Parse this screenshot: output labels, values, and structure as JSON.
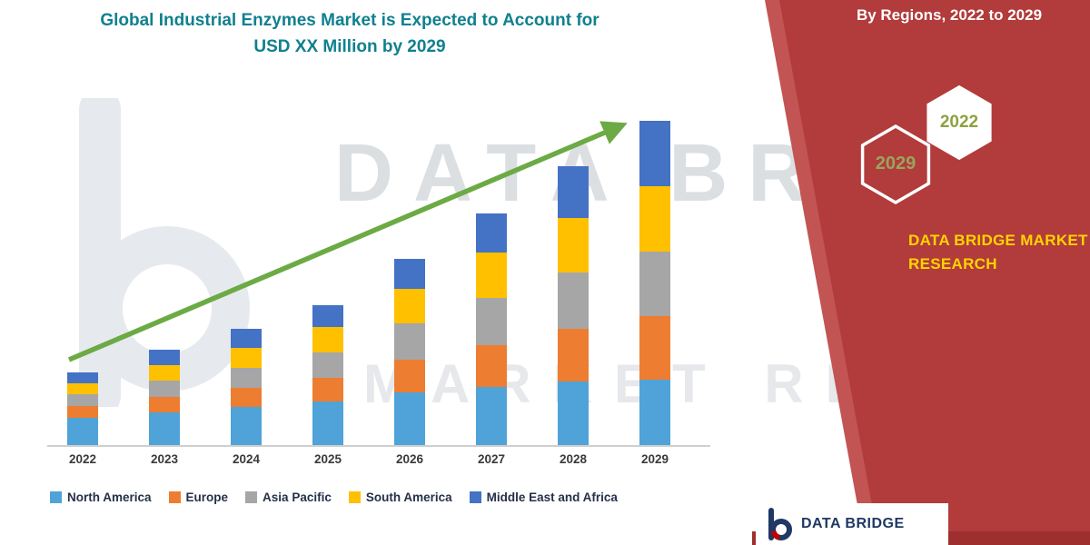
{
  "title": {
    "line1": "Global Industrial Enzymes Market is Expected to Account for",
    "line2": "USD XX Million by 2029"
  },
  "side_panel": {
    "header": "By Regions, 2022 to 2029",
    "hexagons": {
      "back_label": "2029",
      "front_label": "2022"
    },
    "brand": {
      "line1": "DATA BRIDGE MARKET",
      "line2": "RESEARCH"
    },
    "colors": {
      "panel": "#B23B3B",
      "panel_light": "#C25454",
      "hex_text": "#97A24C",
      "brand_text": "#FFD400"
    }
  },
  "watermark": {
    "row1": "DATA BRID",
    "row2": "MARKET RE"
  },
  "footer": {
    "logo_text": "DATA BRIDGE",
    "strip_color": "#9E2F2F"
  },
  "trend_arrow_color": "#6CAA45",
  "chart_data": {
    "type": "bar",
    "stacked": true,
    "title": "Global Industrial Enzymes Market is Expected to Account for USD XX Million by 2029",
    "categories": [
      "2022",
      "2023",
      "2024",
      "2025",
      "2026",
      "2027",
      "2028",
      "2029"
    ],
    "series": [
      {
        "name": "North America",
        "color": "#4FA3D8",
        "values": [
          30,
          36,
          42,
          48,
          58,
          64,
          70,
          72
        ]
      },
      {
        "name": "Europe",
        "color": "#ED7D31",
        "values": [
          13,
          17,
          21,
          26,
          36,
          46,
          58,
          70
        ]
      },
      {
        "name": "Asia Pacific",
        "color": "#A6A6A6",
        "values": [
          13,
          18,
          22,
          28,
          40,
          52,
          62,
          71
        ]
      },
      {
        "name": "South America",
        "color": "#FFC000",
        "values": [
          12,
          17,
          22,
          28,
          38,
          50,
          60,
          72
        ]
      },
      {
        "name": "Middle East and Africa",
        "color": "#4472C4",
        "values": [
          12,
          17,
          21,
          24,
          33,
          43,
          57,
          72
        ]
      }
    ],
    "totals": [
      80,
      105,
      128,
      154,
      205,
      255,
      307,
      357
    ],
    "xlabel": "",
    "ylabel": "",
    "ylim": [
      0,
      400
    ],
    "grid": false,
    "legend_position": "bottom",
    "trend_arrow": true,
    "unit": "relative height (actual figures masked as USD XX Million)"
  }
}
